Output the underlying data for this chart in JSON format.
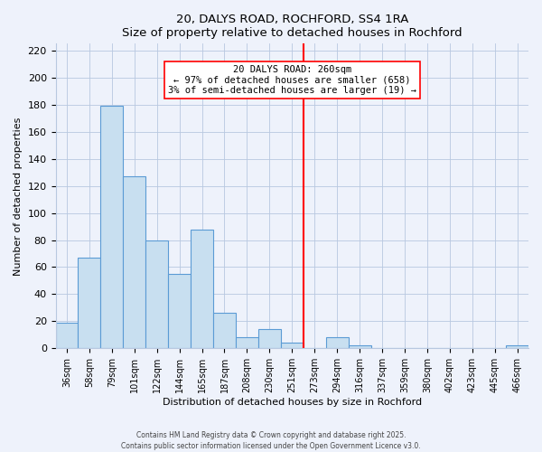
{
  "title": "20, DALYS ROAD, ROCHFORD, SS4 1RA",
  "subtitle": "Size of property relative to detached houses in Rochford",
  "xlabel": "Distribution of detached houses by size in Rochford",
  "ylabel": "Number of detached properties",
  "bar_labels": [
    "36sqm",
    "58sqm",
    "79sqm",
    "101sqm",
    "122sqm",
    "144sqm",
    "165sqm",
    "187sqm",
    "208sqm",
    "230sqm",
    "251sqm",
    "273sqm",
    "294sqm",
    "316sqm",
    "337sqm",
    "359sqm",
    "380sqm",
    "402sqm",
    "423sqm",
    "445sqm",
    "466sqm"
  ],
  "bar_values": [
    19,
    67,
    179,
    127,
    80,
    55,
    88,
    26,
    8,
    14,
    4,
    0,
    8,
    2,
    0,
    0,
    0,
    0,
    0,
    0,
    2
  ],
  "bar_color": "#c8dff0",
  "bar_edge_color": "#5b9bd5",
  "ylim": [
    0,
    225
  ],
  "yticks": [
    0,
    20,
    40,
    60,
    80,
    100,
    120,
    140,
    160,
    180,
    200,
    220
  ],
  "vline_x": 10.5,
  "vline_color": "red",
  "annotation_title": "20 DALYS ROAD: 260sqm",
  "annotation_line1": "← 97% of detached houses are smaller (658)",
  "annotation_line2": "3% of semi-detached houses are larger (19) →",
  "footer1": "Contains HM Land Registry data © Crown copyright and database right 2025.",
  "footer2": "Contains public sector information licensed under the Open Government Licence v3.0.",
  "background_color": "#eef2fb",
  "grid_color": "#b8c8e0"
}
